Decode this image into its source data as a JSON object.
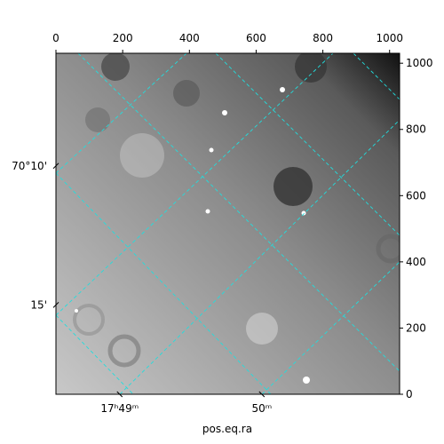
{
  "chart_data": {
    "type": "image",
    "x_label": "pos.eq.ra",
    "xlim": [
      0,
      1030
    ],
    "ylim": [
      0,
      1030
    ],
    "top_xticks": [
      0,
      200,
      400,
      600,
      800,
      1000
    ],
    "right_yticks": [
      0,
      200,
      400,
      600,
      800,
      1000
    ],
    "bottom_xticks": [
      {
        "value": 191,
        "label": "17ʰ49ᵐ"
      },
      {
        "value": 617,
        "label": "50ᵐ"
      }
    ],
    "left_yticks": [
      {
        "value": 690,
        "label": "70°10'"
      },
      {
        "value": 270,
        "label": "15'"
      }
    ],
    "grid_color": "#22dddd"
  }
}
